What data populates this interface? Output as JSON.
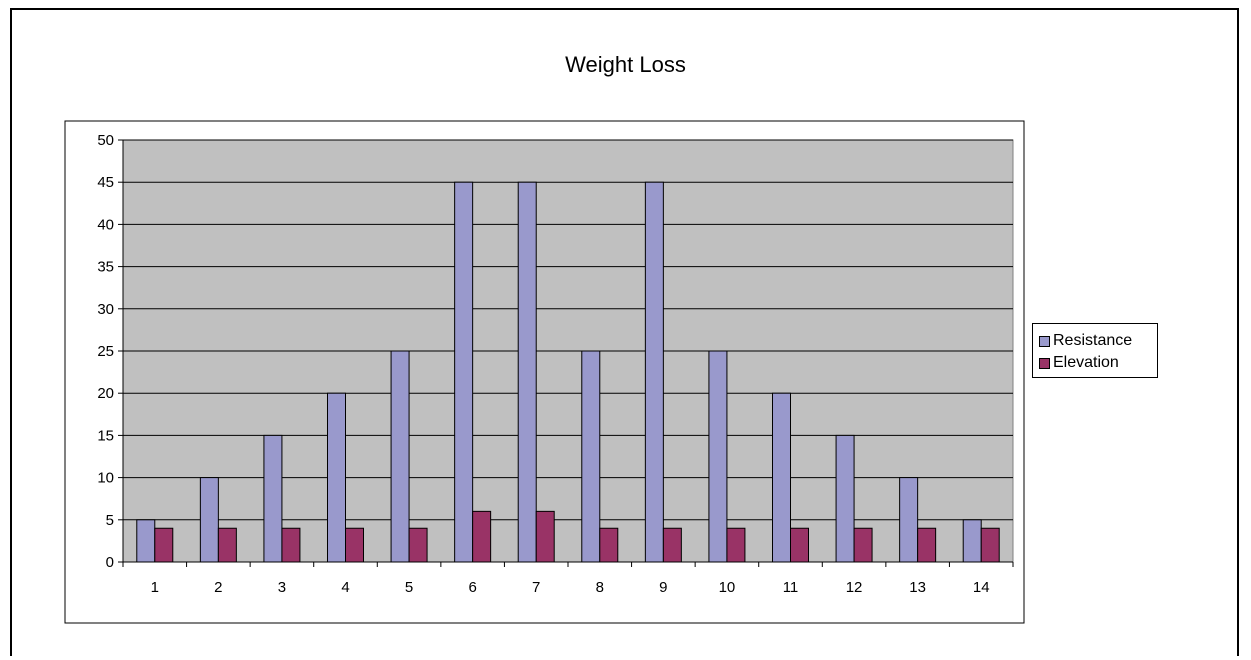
{
  "chart_data": {
    "type": "bar",
    "title": "Weight Loss",
    "categories": [
      "1",
      "2",
      "3",
      "4",
      "5",
      "6",
      "7",
      "8",
      "9",
      "10",
      "11",
      "12",
      "13",
      "14"
    ],
    "series": [
      {
        "name": "Resistance",
        "color": "#9999cc",
        "values": [
          5,
          10,
          15,
          20,
          25,
          45,
          45,
          25,
          45,
          25,
          20,
          15,
          10,
          5
        ]
      },
      {
        "name": "Elevation",
        "color": "#993366",
        "values": [
          4,
          4,
          4,
          4,
          4,
          6,
          6,
          4,
          4,
          4,
          4,
          4,
          4,
          4
        ]
      }
    ],
    "xlabel": "",
    "ylabel": "",
    "ylim": [
      0,
      50
    ],
    "yticks": [
      "0",
      "5",
      "10",
      "15",
      "20",
      "25",
      "30",
      "35",
      "40",
      "45",
      "50"
    ],
    "grid": true,
    "plot_background": "#c0c0c0",
    "legend_position": "right"
  }
}
